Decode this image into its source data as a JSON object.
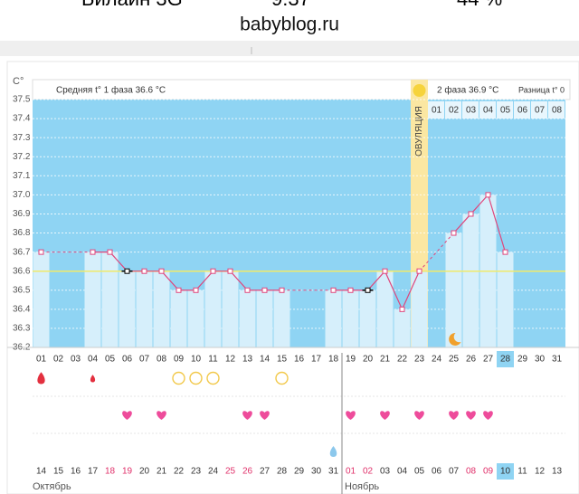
{
  "page": {
    "status": [
      "Билайн 3G",
      "9:37",
      "44 %"
    ],
    "site": "babyblog.ru"
  },
  "chart_data": {
    "type": "line",
    "unit": "C°",
    "phase1_text": "Средняя t° 1 фаза 36.6 °C",
    "phase2_text": "2 фаза 36.9 °C",
    "difference_text": "Разница t° 0",
    "ovulation_text": "ОВУЛЯЦИЯ",
    "ovulation_day": "23",
    "phase2_days": [
      "01",
      "02",
      "03",
      "04",
      "05",
      "06",
      "07",
      "08"
    ],
    "categories": [
      "01",
      "02",
      "03",
      "04",
      "05",
      "06",
      "07",
      "08",
      "09",
      "10",
      "11",
      "12",
      "13",
      "14",
      "15",
      "16",
      "17",
      "18",
      "19",
      "20",
      "21",
      "22",
      "23",
      "24",
      "25",
      "26",
      "27",
      "28",
      "29",
      "30",
      "31"
    ],
    "values": [
      36.7,
      null,
      null,
      36.7,
      36.7,
      36.6,
      36.6,
      36.6,
      36.5,
      36.5,
      36.6,
      36.6,
      36.5,
      36.5,
      36.5,
      null,
      null,
      36.5,
      36.5,
      36.5,
      36.6,
      36.4,
      36.6,
      null,
      36.8,
      36.9,
      37.0,
      36.7,
      null,
      null,
      null
    ],
    "color": "#e0457b",
    "coverline": 36.6,
    "black_marker_days": [
      "06",
      "20"
    ],
    "highlight_day": "28",
    "ylim": [
      36.2,
      37.5
    ],
    "yticks": [
      36.2,
      36.3,
      36.4,
      36.5,
      36.6,
      36.7,
      36.8,
      36.9,
      {
        "value": 37,
        "label": "37.0"
      },
      37.1,
      37.2,
      37.3,
      37.4,
      37.5
    ],
    "grid": true,
    "bleeding_big": [
      "01"
    ],
    "bleeding_small": [
      "04"
    ],
    "circles": [
      "09",
      "10",
      "11",
      "15"
    ],
    "hearts": [
      "06",
      "08",
      "13",
      "14",
      "19",
      "21",
      "23",
      "25",
      "26",
      "27"
    ],
    "blue_drop": [
      "18"
    ],
    "moon": [
      "25"
    ],
    "dates": [
      {
        "label": "14",
        "red": false
      },
      {
        "label": "15",
        "red": false
      },
      {
        "label": "16",
        "red": false
      },
      {
        "label": "17",
        "red": false
      },
      {
        "label": "18",
        "red": true
      },
      {
        "label": "19",
        "red": true
      },
      {
        "label": "20",
        "red": false
      },
      {
        "label": "21",
        "red": false
      },
      {
        "label": "22",
        "red": false
      },
      {
        "label": "23",
        "red": false
      },
      {
        "label": "24",
        "red": false
      },
      {
        "label": "25",
        "red": true
      },
      {
        "label": "26",
        "red": true
      },
      {
        "label": "27",
        "red": false
      },
      {
        "label": "28",
        "red": false
      },
      {
        "label": "29",
        "red": false
      },
      {
        "label": "30",
        "red": false
      },
      {
        "label": "31",
        "red": false
      },
      {
        "label": "01",
        "red": true
      },
      {
        "label": "02",
        "red": true
      },
      {
        "label": "03",
        "red": false
      },
      {
        "label": "04",
        "red": false
      },
      {
        "label": "05",
        "red": false
      },
      {
        "label": "06",
        "red": false
      },
      {
        "label": "07",
        "red": false
      },
      {
        "label": "08",
        "red": true
      },
      {
        "label": "09",
        "red": true
      },
      {
        "label": "10",
        "red": false
      },
      {
        "label": "11",
        "red": false
      },
      {
        "label": "12",
        "red": false
      },
      {
        "label": "13",
        "red": false
      }
    ],
    "months": [
      "Октябрь",
      "Ноябрь"
    ]
  }
}
